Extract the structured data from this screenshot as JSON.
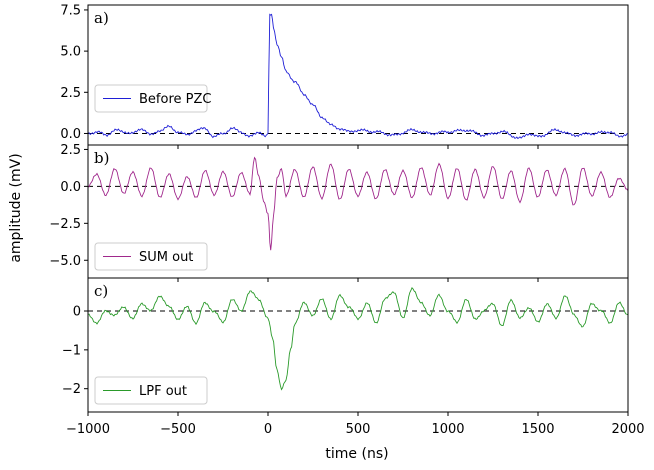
{
  "chart_data": {
    "type": "line",
    "xlabel": "time (ns)",
    "ylabel": "amplitude (mV)",
    "xlim": [
      -1000,
      2000
    ],
    "x_ticks": [
      -1000,
      -500,
      0,
      500,
      1000,
      1500,
      2000
    ],
    "panels": [
      {
        "label": "a)",
        "series_name": "Before PZC",
        "color": "#1f1fd6",
        "ylim": [
          -0.7,
          7.8
        ],
        "y_ticks": [
          0.0,
          2.5,
          5.0,
          7.5
        ],
        "y_tick_labels": [
          "0.0",
          "2.5",
          "5.0",
          "7.5"
        ],
        "baseline": 0,
        "legend_position": "left-middle",
        "series": {
          "x": [
            -1000,
            -950,
            -900,
            -850,
            -800,
            -750,
            -700,
            -650,
            -600,
            -550,
            -500,
            -450,
            -400,
            -350,
            -300,
            -250,
            -200,
            -150,
            -100,
            -50,
            -10,
            0,
            5,
            10,
            20,
            30,
            50,
            75,
            100,
            150,
            200,
            250,
            300,
            350,
            400,
            450,
            500,
            600,
            700,
            800,
            900,
            1000,
            1100,
            1200,
            1300,
            1400,
            1450,
            1500,
            1600,
            1700,
            1800,
            1900,
            1950,
            2000
          ],
          "y": [
            0.0,
            0.1,
            -0.1,
            0.2,
            0.1,
            0.0,
            0.3,
            -0.1,
            0.2,
            0.4,
            0.1,
            -0.1,
            0.2,
            0.3,
            -0.2,
            0.0,
            0.3,
            0.1,
            -0.2,
            0.1,
            -0.2,
            0.0,
            4.0,
            7.2,
            7.3,
            6.5,
            5.4,
            4.6,
            3.8,
            3.1,
            2.4,
            1.7,
            1.0,
            0.5,
            0.3,
            0.1,
            0.2,
            0.1,
            -0.1,
            0.2,
            0.0,
            0.1,
            0.2,
            -0.1,
            0.1,
            -0.3,
            0.0,
            -0.2,
            0.2,
            -0.1,
            0.0,
            0.1,
            -0.2,
            0.0
          ]
        }
      },
      {
        "label": "b)",
        "series_name": "SUM out",
        "color": "#a0288c",
        "ylim": [
          -6.2,
          2.8
        ],
        "y_ticks": [
          2.5,
          0.0,
          -2.5,
          -5.0
        ],
        "y_tick_labels": [
          "2.5",
          "0.0",
          "−2.5",
          "−5.0"
        ],
        "baseline": 0,
        "legend_position": "bottom-left",
        "series": {
          "x": [
            -1000,
            -950,
            -900,
            -850,
            -800,
            -750,
            -700,
            -650,
            -600,
            -550,
            -500,
            -450,
            -400,
            -350,
            -300,
            -250,
            -200,
            -150,
            -100,
            -75,
            -50,
            -25,
            0,
            15,
            30,
            50,
            75,
            100,
            150,
            200,
            250,
            300,
            350,
            400,
            450,
            500,
            550,
            600,
            650,
            700,
            750,
            800,
            850,
            900,
            950,
            1000,
            1050,
            1100,
            1150,
            1200,
            1250,
            1300,
            1350,
            1400,
            1450,
            1500,
            1550,
            1600,
            1650,
            1700,
            1750,
            1800,
            1850,
            1900,
            1950,
            2000
          ],
          "y": [
            0.0,
            0.8,
            -0.6,
            1.2,
            -0.5,
            1.0,
            -0.7,
            1.3,
            -0.8,
            0.9,
            -0.9,
            0.7,
            -0.8,
            1.1,
            -0.6,
            1.0,
            -0.7,
            0.9,
            -0.5,
            2.0,
            0.6,
            -1.0,
            -1.8,
            -4.3,
            -2.1,
            0.5,
            1.2,
            -0.6,
            1.1,
            -0.7,
            1.3,
            -0.8,
            1.5,
            -0.9,
            1.2,
            -0.7,
            1.0,
            -0.9,
            1.2,
            -0.6,
            1.1,
            -0.8,
            1.3,
            -0.6,
            1.5,
            -0.8,
            1.2,
            -0.9,
            1.1,
            -0.7,
            1.3,
            -0.8,
            1.0,
            -1.0,
            1.2,
            -0.7,
            1.1,
            -0.6,
            1.2,
            -1.3,
            1.3,
            -0.7,
            1.0,
            -0.8,
            0.6,
            -0.3
          ]
        }
      },
      {
        "label": "c)",
        "series_name": "LPF out",
        "color": "#2a9a2a",
        "ylim": [
          -2.6,
          0.85
        ],
        "y_ticks": [
          0,
          -1,
          -2
        ],
        "y_tick_labels": [
          "0",
          "−1",
          "−2"
        ],
        "baseline": 0,
        "legend_position": "bottom-left",
        "series": {
          "x": [
            -1000,
            -950,
            -900,
            -850,
            -800,
            -750,
            -700,
            -650,
            -600,
            -550,
            -500,
            -450,
            -400,
            -350,
            -300,
            -250,
            -200,
            -150,
            -100,
            -50,
            0,
            25,
            50,
            75,
            100,
            125,
            150,
            200,
            250,
            300,
            350,
            400,
            450,
            500,
            550,
            600,
            650,
            700,
            750,
            800,
            850,
            900,
            950,
            1000,
            1050,
            1100,
            1150,
            1200,
            1250,
            1300,
            1350,
            1400,
            1450,
            1500,
            1550,
            1600,
            1650,
            1700,
            1750,
            1800,
            1850,
            1900,
            1950,
            2000
          ],
          "y": [
            -0.1,
            -0.3,
            0.0,
            -0.1,
            0.1,
            -0.2,
            0.2,
            0.0,
            0.4,
            0.1,
            -0.2,
            0.1,
            -0.3,
            0.2,
            0.0,
            -0.3,
            0.3,
            0.0,
            0.5,
            0.3,
            -0.2,
            -0.7,
            -1.5,
            -2.0,
            -1.8,
            -1.0,
            -0.3,
            0.2,
            -0.1,
            0.3,
            -0.2,
            0.4,
            0.1,
            -0.2,
            0.2,
            -0.3,
            0.3,
            0.5,
            -0.2,
            0.6,
            0.2,
            -0.1,
            0.4,
            0.0,
            -0.3,
            0.3,
            -0.2,
            0.0,
            0.2,
            -0.4,
            0.3,
            -0.2,
            0.1,
            -0.3,
            0.2,
            -0.2,
            0.4,
            -0.1,
            -0.4,
            0.2,
            0.0,
            -0.3,
            0.2,
            -0.1
          ]
        }
      }
    ]
  }
}
